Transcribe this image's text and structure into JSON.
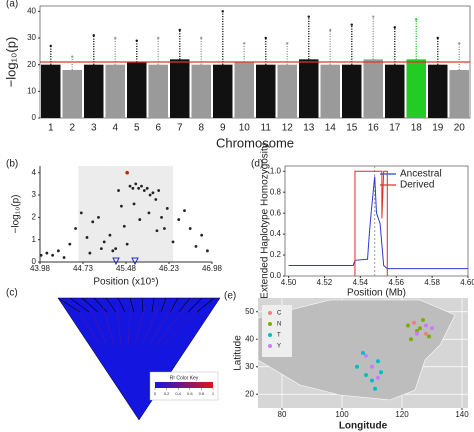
{
  "chart_data": [
    {
      "type": "manhattan",
      "label": "(a)",
      "ylabel": "−log₁₀(p)",
      "xlabel": "Chromosome",
      "categories": [
        "1",
        "2",
        "3",
        "4",
        "5",
        "6",
        "7",
        "8",
        "9",
        "10",
        "11",
        "12",
        "13",
        "14",
        "15",
        "16",
        "17",
        "18",
        "19",
        "20"
      ],
      "bulk": [
        20,
        18,
        20,
        20,
        21,
        20,
        22,
        20,
        20,
        21,
        20,
        20,
        22,
        20,
        20,
        22,
        20,
        22,
        20,
        18
      ],
      "peak": [
        27,
        23,
        31,
        30,
        29,
        30,
        33,
        30,
        40,
        28,
        30,
        28,
        38,
        33,
        35,
        38,
        34,
        37,
        30,
        28
      ],
      "colors": [
        "#111111",
        "#9a9a9a"
      ],
      "highlight_index": 17,
      "highlight_color": "#22cc22",
      "threshold": 21,
      "threshold_color": "#e8302a",
      "ylim": [
        0,
        42
      ],
      "yticks": [
        0,
        10,
        20,
        30,
        40
      ]
    },
    {
      "type": "scatter",
      "label": "(b)",
      "ylabel": "−log₁₀(p)",
      "xlabel": "Position (x10⁵)",
      "x": [
        44.0,
        44.1,
        44.2,
        44.3,
        44.4,
        44.5,
        44.6,
        44.7,
        44.8,
        44.9,
        45.0,
        45.1,
        45.2,
        45.3,
        45.35,
        45.4,
        45.45,
        45.5,
        45.55,
        45.6,
        45.65,
        45.7,
        45.75,
        45.8,
        45.85,
        45.9,
        45.95,
        46.0,
        46.05,
        46.1,
        46.15,
        46.2,
        46.3,
        46.4,
        46.5,
        46.6,
        46.7,
        46.8,
        46.9,
        44.85,
        45.05,
        45.25,
        45.62,
        45.72,
        45.88,
        46.02
      ],
      "y": [
        0.3,
        0.4,
        0.3,
        0.5,
        0.2,
        0.8,
        1.5,
        2.2,
        1.1,
        1.8,
        2.0,
        0.9,
        1.2,
        0.6,
        3.2,
        2.5,
        1.6,
        0.8,
        3.4,
        3.3,
        3.5,
        3.3,
        3.4,
        3.2,
        3.3,
        3.0,
        3.1,
        2.8,
        3.2,
        2.0,
        1.5,
        2.4,
        0.9,
        1.9,
        2.3,
        1.5,
        0.7,
        1.2,
        0.5,
        0.4,
        0.6,
        0.5,
        2.6,
        1.9,
        2.2,
        1.4
      ],
      "color": "#222222",
      "lead": {
        "x": 45.5,
        "y": 4.0,
        "color": "#cc2200"
      },
      "shade_x": [
        44.65,
        46.3
      ],
      "xlim": [
        43.98,
        46.98
      ],
      "xticks": [
        43.98,
        44.73,
        45.48,
        46.23,
        46.98
      ],
      "ylim": [
        0,
        4.3
      ],
      "yticks": [
        0,
        1,
        2,
        3,
        4
      ]
    },
    {
      "type": "heatmap",
      "label": "(c)",
      "key_title": "R² Color Key",
      "key_ticks": [
        0,
        0.2,
        0.4,
        0.6,
        0.8,
        1
      ],
      "colors": [
        "#1515e0",
        "#e01515"
      ]
    },
    {
      "type": "line",
      "label": "(d)",
      "ylabel": "Extended Haplotype Homozygosity",
      "xlabel": "Position (Mb)",
      "series": [
        {
          "name": "Ancestral",
          "color": "#2a3bd4",
          "x": [
            4.5,
            4.536,
            4.537,
            4.544,
            4.545,
            4.546,
            4.548,
            4.549,
            4.551,
            4.552,
            4.553,
            4.555,
            4.6
          ],
          "values": [
            0.1,
            0.1,
            0.15,
            0.16,
            0.4,
            0.6,
            0.95,
            0.6,
            0.5,
            0.3,
            0.1,
            0.07,
            0.07
          ]
        },
        {
          "name": "Derived",
          "color": "#e02a2a",
          "x": [
            4.537,
            4.537,
            4.552,
            4.552,
            4.553,
            4.555,
            4.555
          ],
          "values": [
            0,
            1.0,
            1.0,
            0.55,
            1.0,
            1.0,
            0
          ]
        }
      ],
      "core": 4.548,
      "xlim": [
        4.498,
        4.6
      ],
      "xticks": [
        {
          "value": 4.5,
          "label": "4.50"
        },
        4.52,
        4.54,
        4.56,
        4.58,
        {
          "value": 4.6,
          "label": "4.60"
        }
      ],
      "ylim": [
        0,
        1.05
      ],
      "yticks": [
        {
          "value": 0,
          "label": "0.0"
        },
        0.2,
        0.4,
        0.6,
        0.8,
        {
          "value": 1,
          "label": "1.0"
        }
      ]
    },
    {
      "type": "map",
      "label": "(e)",
      "ylabel": "Latitude",
      "xlabel": "Longitude",
      "series": [
        {
          "name": "C",
          "color": "#f08080",
          "x": [
            126,
            128,
            124
          ],
          "y": [
            44,
            42,
            46
          ]
        },
        {
          "name": "N",
          "color": "#7cae00",
          "x": [
            122,
            125,
            127,
            129,
            123,
            126
          ],
          "y": [
            45,
            43,
            47,
            41,
            40,
            44
          ]
        },
        {
          "name": "T",
          "color": "#00bfc4",
          "x": [
            105,
            108,
            110,
            112,
            107,
            113,
            111
          ],
          "y": [
            30,
            27,
            25,
            32,
            35,
            28,
            22
          ]
        },
        {
          "name": "Y",
          "color": "#c77cff",
          "x": [
            125,
            128,
            130,
            112,
            110,
            108
          ],
          "y": [
            42,
            45,
            44,
            26,
            30,
            34
          ]
        }
      ],
      "xlim": [
        72,
        142
      ],
      "xticks": [
        80,
        100,
        120,
        140
      ],
      "ylim": [
        15,
        55
      ],
      "yticks": [
        20,
        30,
        40,
        50
      ]
    }
  ]
}
